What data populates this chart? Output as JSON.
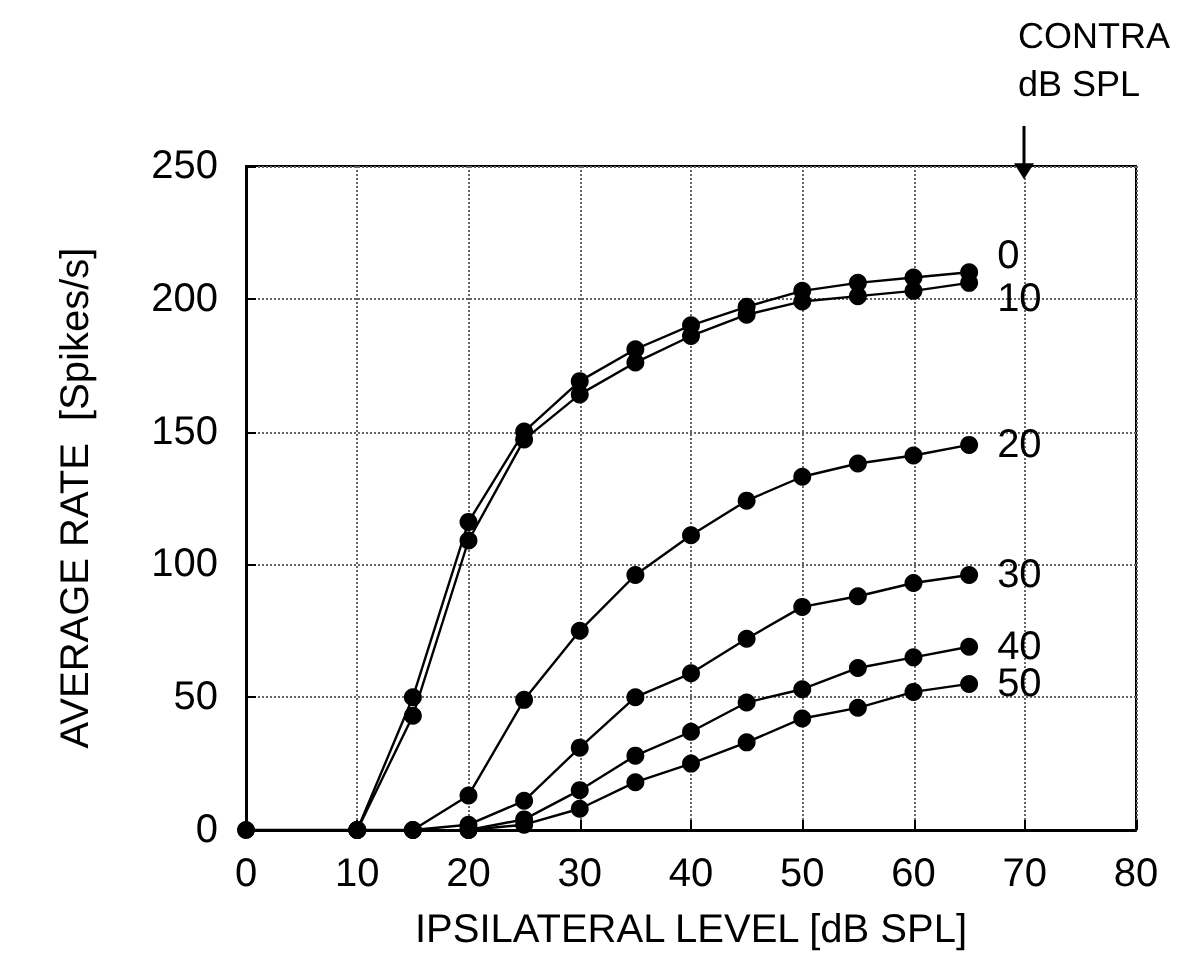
{
  "chart_data": {
    "type": "line",
    "xlabel": "IPSILATERAL LEVEL [dB SPL]",
    "ylabel": "AVERAGE RATE  [Spikes/s]",
    "annotations": [
      "CONTRA\ndB SPL"
    ],
    "xlim": [
      0,
      80
    ],
    "xticks": [
      0,
      10,
      20,
      30,
      40,
      50,
      60,
      70,
      80
    ],
    "ylim": [
      0,
      250
    ],
    "yticks": [
      0,
      50,
      100,
      150,
      200,
      250
    ],
    "grid": true,
    "marker": "circle",
    "legend": false,
    "series": [
      {
        "name": "0",
        "color": "#000000",
        "x": [
          10,
          15,
          20,
          25,
          30,
          35,
          40,
          45,
          50,
          55,
          60,
          65
        ],
        "values": [
          0,
          50,
          116,
          150,
          169,
          181,
          190,
          197,
          203,
          206,
          208,
          210
        ]
      },
      {
        "name": "10",
        "color": "#000000",
        "x": [
          0,
          10,
          15,
          20,
          25,
          30,
          35,
          40,
          45,
          50,
          55,
          60,
          65
        ],
        "values": [
          0,
          0,
          43,
          109,
          147,
          164,
          176,
          186,
          194,
          199,
          201,
          203,
          206
        ]
      },
      {
        "name": "20",
        "color": "#000000",
        "x": [
          10,
          15,
          20,
          25,
          30,
          35,
          40,
          45,
          50,
          55,
          60,
          65
        ],
        "values": [
          0,
          0,
          13,
          49,
          75,
          96,
          111,
          124,
          133,
          138,
          141,
          145
        ]
      },
      {
        "name": "30",
        "color": "#000000",
        "x": [
          15,
          20,
          25,
          30,
          35,
          40,
          45,
          50,
          55,
          60,
          65
        ],
        "values": [
          0,
          2,
          11,
          31,
          50,
          59,
          72,
          84,
          88,
          93,
          96
        ]
      },
      {
        "name": "40",
        "color": "#000000",
        "x": [
          20,
          25,
          30,
          35,
          40,
          45,
          50,
          55,
          60,
          65
        ],
        "values": [
          0,
          4,
          15,
          28,
          37,
          48,
          53,
          61,
          65,
          69
        ]
      },
      {
        "name": "50",
        "color": "#000000",
        "x": [
          20,
          25,
          30,
          35,
          40,
          45,
          50,
          55,
          60,
          65
        ],
        "values": [
          0,
          2,
          8,
          18,
          25,
          33,
          42,
          46,
          52,
          55
        ]
      }
    ]
  }
}
